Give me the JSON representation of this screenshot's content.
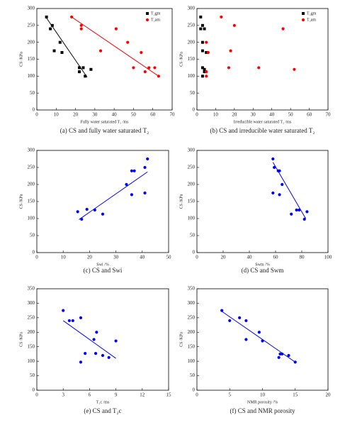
{
  "chart_data": [
    {
      "type": "scatter",
      "caption": "(a) CS and fully water saturated T₂",
      "xlabel": "Fully water saturated T₂ /ms",
      "ylabel": "CS /KPa",
      "xlim": [
        0,
        70
      ],
      "ylim": [
        0,
        300
      ],
      "xticks": [
        0,
        10,
        20,
        30,
        40,
        50,
        60,
        70
      ],
      "yticks": [
        0,
        50,
        100,
        150,
        200,
        250,
        300
      ],
      "legend": "upper right",
      "series": [
        {
          "name": "T₂gm",
          "color": "#000000",
          "marker": "square",
          "x": [
            5,
            7,
            8,
            9,
            12,
            13,
            22,
            22,
            24,
            25,
            28
          ],
          "values": [
            275,
            240,
            250,
            175,
            200,
            170,
            125,
            113,
            125,
            100,
            120
          ]
        },
        {
          "name": "T₂am",
          "color": "#ff0000",
          "marker": "circle",
          "x": [
            18,
            23,
            23,
            33,
            41,
            47,
            50,
            54,
            56,
            58,
            61,
            63
          ],
          "values": [
            275,
            250,
            240,
            175,
            240,
            200,
            125,
            170,
            113,
            125,
            125,
            100
          ]
        }
      ],
      "fit": [
        {
          "color": "#000000",
          "x": [
            5,
            26
          ],
          "values": [
            272,
            97
          ]
        },
        {
          "color": "#ff0000",
          "x": [
            18,
            63
          ],
          "values": [
            275,
            100
          ]
        }
      ]
    },
    {
      "type": "scatter",
      "caption": "(b) CS and irreducible water saturated T₂",
      "xlabel": "Irreducible water saturated T₂ /ms",
      "ylabel": "CS /KPa",
      "xlim": [
        0,
        70
      ],
      "ylim": [
        0,
        300
      ],
      "xticks": [
        0,
        10,
        20,
        30,
        40,
        50,
        60,
        70
      ],
      "yticks": [
        0,
        50,
        100,
        150,
        200,
        250,
        300
      ],
      "legend": "upper right",
      "series": [
        {
          "name": "T₂gm",
          "color": "#000000",
          "marker": "square",
          "x": [
            2,
            2,
            3,
            4,
            3,
            3,
            5,
            3,
            4,
            4,
            3
          ],
          "values": [
            275,
            240,
            250,
            240,
            200,
            175,
            170,
            125,
            120,
            113,
            100
          ]
        },
        {
          "name": "T₂am",
          "color": "#ff0000",
          "marker": "circle",
          "x": [
            13,
            20,
            18,
            17,
            33,
            46,
            52,
            5,
            6,
            5,
            5
          ],
          "values": [
            275,
            250,
            175,
            125,
            125,
            240,
            120,
            200,
            170,
            113,
            100
          ]
        }
      ],
      "fit": []
    },
    {
      "type": "scatter",
      "caption": "(c) CS and Swi",
      "xlabel": "Swi /%",
      "ylabel": "CS /KPa",
      "xlim": [
        0,
        50
      ],
      "ylim": [
        0,
        300
      ],
      "xticks": [
        0,
        10,
        20,
        30,
        40,
        50
      ],
      "yticks": [
        0,
        50,
        100,
        150,
        200,
        250,
        300
      ],
      "series": [
        {
          "color": "#0000ff",
          "marker": "circle",
          "x": [
            15.5,
            17,
            19,
            22,
            25,
            34,
            36,
            36,
            37,
            41,
            41,
            42
          ],
          "values": [
            120,
            98,
            127,
            125,
            113,
            200,
            170,
            240,
            240,
            250,
            175,
            275
          ]
        }
      ],
      "fit": [
        {
          "color": "#0000ff",
          "x": [
            16,
            42
          ],
          "values": [
            97,
            237
          ]
        }
      ]
    },
    {
      "type": "scatter",
      "caption": "(d) CS and Swm",
      "xlabel": "Swm /%",
      "ylabel": "CS /KPa",
      "xlim": [
        0,
        100
      ],
      "ylim": [
        0,
        300
      ],
      "xticks": [
        0,
        20,
        40,
        60,
        80,
        100
      ],
      "yticks": [
        0,
        50,
        100,
        150,
        200,
        250,
        300
      ],
      "series": [
        {
          "color": "#0000ff",
          "marker": "circle",
          "x": [
            58,
            59,
            58,
            62,
            63,
            63,
            65,
            72,
            76,
            78,
            82,
            84
          ],
          "values": [
            275,
            250,
            175,
            240,
            240,
            170,
            200,
            113,
            125,
            125,
            98,
            120
          ]
        }
      ],
      "fit": [
        {
          "color": "#0000ff",
          "x": [
            58,
            83
          ],
          "values": [
            265,
            100
          ]
        }
      ]
    },
    {
      "type": "scatter",
      "caption": "(e) CS and T₂c",
      "xlabel": "T₂c /ms",
      "ylabel": "CS /KPa",
      "xlim": [
        0,
        15
      ],
      "ylim": [
        0,
        350
      ],
      "xticks": [
        0,
        3,
        6,
        9,
        12,
        15
      ],
      "yticks": [
        0,
        50,
        100,
        150,
        200,
        250,
        300,
        350
      ],
      "series": [
        {
          "color": "#0000ff",
          "marker": "circle",
          "x": [
            3,
            3.7,
            4.1,
            5,
            5,
            5.5,
            6.5,
            6.7,
            6.8,
            7.5,
            8.2,
            9
          ],
          "values": [
            275,
            240,
            240,
            250,
            97,
            127,
            175,
            127,
            200,
            120,
            113,
            170
          ]
        }
      ],
      "fit": [
        {
          "color": "#0000ff",
          "x": [
            3,
            9
          ],
          "values": [
            240,
            110
          ]
        }
      ]
    },
    {
      "type": "scatter",
      "caption": "(f) CS and NMR porosity",
      "xlabel": "NMR porosity /%",
      "ylabel": "CS /KPa",
      "xlim": [
        0,
        20
      ],
      "ylim": [
        0,
        350
      ],
      "xticks": [
        0,
        5,
        10,
        15,
        20
      ],
      "yticks": [
        0,
        50,
        100,
        150,
        200,
        250,
        300,
        350
      ],
      "series": [
        {
          "color": "#0000ff",
          "marker": "circle",
          "x": [
            3.8,
            5,
            6.5,
            7.5,
            7.5,
            9.5,
            10,
            12.5,
            12.7,
            13,
            14,
            15
          ],
          "values": [
            275,
            240,
            250,
            240,
            175,
            200,
            170,
            113,
            125,
            125,
            120,
            97
          ]
        }
      ],
      "fit": [
        {
          "color": "#0000ff",
          "x": [
            3.8,
            15
          ],
          "values": [
            272,
            97
          ]
        }
      ]
    }
  ]
}
